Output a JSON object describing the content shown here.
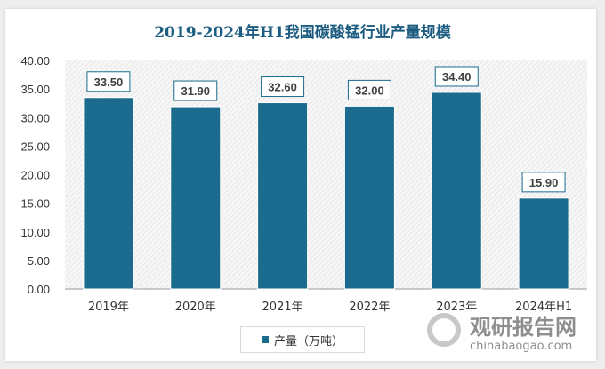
{
  "chart_data": {
    "type": "bar",
    "title": "2019-2024年H1我国碳酸锰行业产量规模",
    "categories": [
      "2019年",
      "2020年",
      "2021年",
      "2022年",
      "2023年",
      "2024年H1"
    ],
    "series": [
      {
        "name": "产量（万吨）",
        "values": [
          33.5,
          31.9,
          32.6,
          32.0,
          34.4,
          15.9
        ]
      }
    ],
    "data_labels": [
      "33.50",
      "31.90",
      "32.60",
      "32.00",
      "34.40",
      "15.90"
    ],
    "yticks": [
      "0.00",
      "5.00",
      "10.00",
      "15.00",
      "20.00",
      "25.00",
      "30.00",
      "35.00",
      "40.00"
    ],
    "ylim": [
      0,
      40
    ],
    "grid": false,
    "legend_position": "bottom",
    "bar_color": "#1b6b8e",
    "label_border_color": "#1b6b8e"
  },
  "watermark": {
    "cn": "观研报告网",
    "en": "chinabaogao.com"
  }
}
